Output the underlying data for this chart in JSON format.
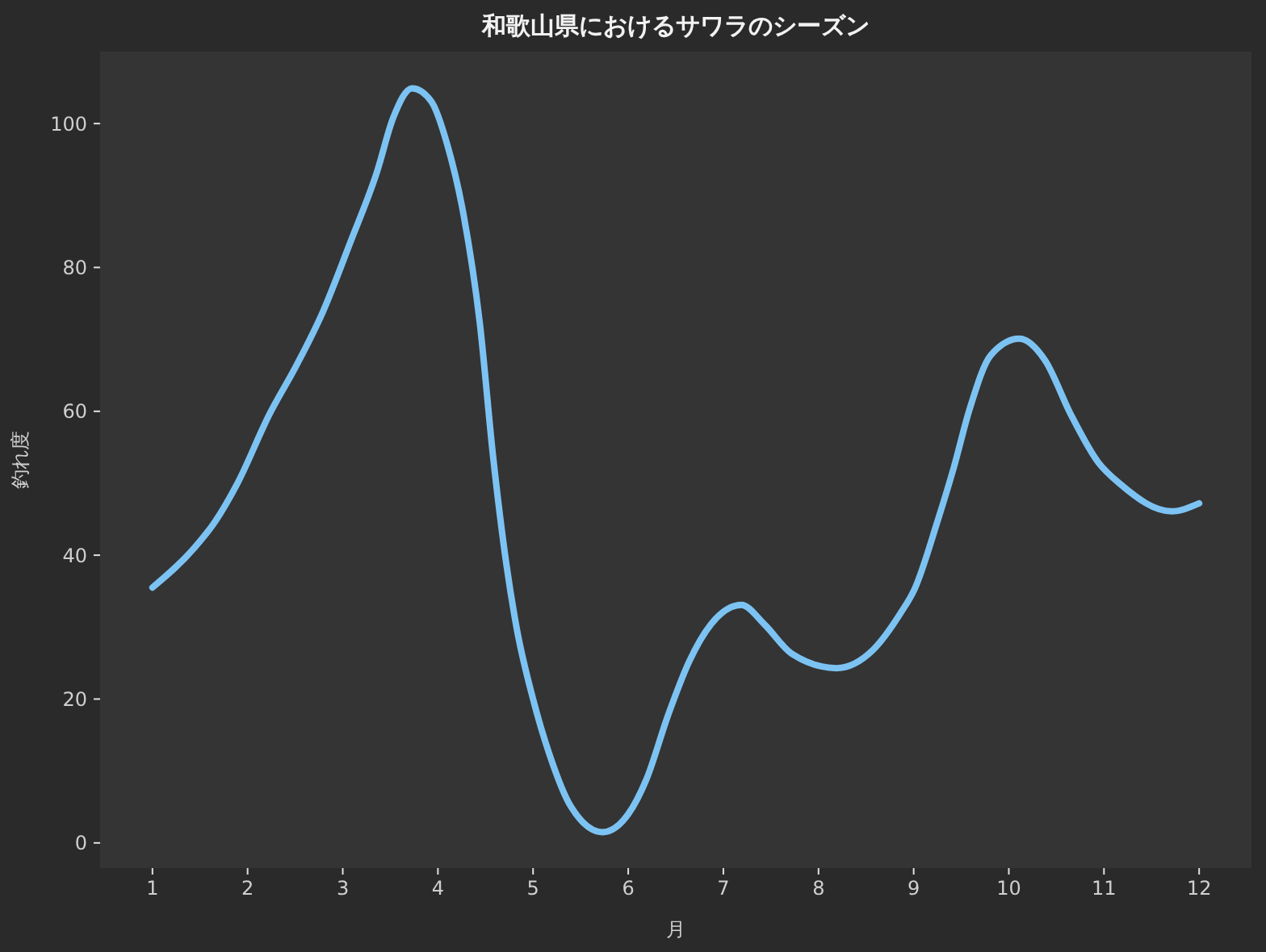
{
  "chart_data": {
    "type": "line",
    "title": "和歌山県におけるサワラのシーズン",
    "xlabel": "月",
    "ylabel": "釣れ度",
    "x": [
      1,
      1.44,
      1.66,
      1.89,
      2.23,
      2.51,
      2.79,
      3.08,
      3.36,
      3.53,
      3.73,
      3.93,
      4.1,
      4.27,
      4.44,
      4.58,
      4.72,
      4.83,
      5.0,
      5.17,
      5.4,
      5.73,
      6.0,
      6.19,
      6.42,
      6.64,
      6.87,
      7.19,
      7.43,
      7.72,
      8.19,
      8.57,
      8.86,
      9.01,
      9.25,
      9.42,
      9.59,
      9.81,
      10.11,
      10.38,
      10.65,
      10.94,
      11.17,
      11.71,
      12
    ],
    "values": [
      35.5,
      41,
      44.7,
      49.9,
      59.6,
      66.3,
      73.8,
      83.5,
      93.3,
      100.8,
      104.9,
      103.1,
      97,
      87.3,
      72.3,
      53.7,
      38.7,
      29.7,
      20,
      12.4,
      5,
      1.5,
      4,
      8.8,
      17.8,
      25.2,
      30.4,
      33.1,
      30.4,
      26.3,
      24.3,
      26.8,
      31.9,
      35.3,
      44.7,
      52.1,
      60.4,
      67.8,
      70.1,
      67.1,
      59.6,
      52.9,
      49.9,
      46.1,
      47.2
    ],
    "color": "#7cc3f3",
    "xlim": [
      0.45,
      12.55
    ],
    "xticks": [
      1,
      2,
      3,
      4,
      5,
      6,
      7,
      8,
      9,
      10,
      11,
      12
    ],
    "ylim": [
      -3.5,
      110
    ],
    "yticks": [
      0,
      20,
      40,
      60,
      80,
      100
    ],
    "marker": "none"
  }
}
